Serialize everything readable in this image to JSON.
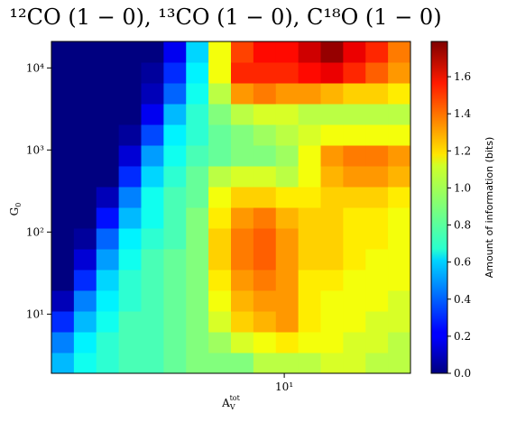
{
  "chart_data": {
    "type": "heatmap",
    "title": "¹²CO (1 − 0), ¹³CO (1 − 0), C¹⁸O (1 − 0)",
    "xlabel": {
      "base": "A",
      "sub": "V",
      "sup": "tot"
    },
    "ylabel": {
      "base": "G",
      "sub": "0"
    },
    "xscale": "log",
    "yscale": "log",
    "xlim": [
      1.6,
      27
    ],
    "ylim": [
      1.9,
      21000
    ],
    "xticks": [
      {
        "value": 10,
        "label": "10¹"
      }
    ],
    "yticks": [
      {
        "value": 10,
        "label": "10¹"
      },
      {
        "value": 100,
        "label": "10²"
      },
      {
        "value": 1000,
        "label": "10³"
      },
      {
        "value": 10000,
        "label": "10⁴"
      }
    ],
    "colormap": "jet",
    "clim": [
      0,
      1.79
    ],
    "colorbar_label": "Amount of information (bits)",
    "colorbar_ticks": [
      {
        "value": 0,
        "label": "0.0"
      },
      0.2,
      0.4,
      0.6,
      0.8,
      {
        "value": 1,
        "label": "1.0"
      },
      1.2,
      1.4,
      1.6
    ],
    "values": [
      [
        0.55,
        0.7,
        0.75,
        0.8,
        0.8,
        0.85,
        0.9,
        0.9,
        0.9,
        1.0,
        1.0,
        1.0,
        1.05,
        1.05,
        1.0,
        1.0
      ],
      [
        0.45,
        0.65,
        0.75,
        0.8,
        0.8,
        0.85,
        0.9,
        0.95,
        1.05,
        1.1,
        1.15,
        1.1,
        1.1,
        1.05,
        1.05,
        1.0
      ],
      [
        0.3,
        0.55,
        0.7,
        0.8,
        0.8,
        0.85,
        0.9,
        1.05,
        1.2,
        1.25,
        1.3,
        1.15,
        1.1,
        1.1,
        1.05,
        1.05
      ],
      [
        0.1,
        0.45,
        0.65,
        0.75,
        0.8,
        0.85,
        0.9,
        1.1,
        1.25,
        1.3,
        1.3,
        1.15,
        1.1,
        1.1,
        1.1,
        1.05
      ],
      [
        0.0,
        0.3,
        0.6,
        0.75,
        0.8,
        0.85,
        0.9,
        1.15,
        1.3,
        1.35,
        1.3,
        1.15,
        1.15,
        1.1,
        1.1,
        1.1
      ],
      [
        0.0,
        0.15,
        0.5,
        0.7,
        0.8,
        0.85,
        0.9,
        1.2,
        1.35,
        1.4,
        1.3,
        1.2,
        1.2,
        1.15,
        1.1,
        1.1
      ],
      [
        0.0,
        0.05,
        0.4,
        0.65,
        0.75,
        0.8,
        0.9,
        1.2,
        1.35,
        1.4,
        1.3,
        1.2,
        1.2,
        1.15,
        1.15,
        1.1
      ],
      [
        0.0,
        0.0,
        0.25,
        0.55,
        0.7,
        0.8,
        0.9,
        1.15,
        1.3,
        1.35,
        1.25,
        1.2,
        1.2,
        1.15,
        1.15,
        1.1
      ],
      [
        0.0,
        0.0,
        0.1,
        0.45,
        0.7,
        0.8,
        0.85,
        1.1,
        1.2,
        1.2,
        1.15,
        1.15,
        1.2,
        1.2,
        1.2,
        1.15
      ],
      [
        0.0,
        0.0,
        0.0,
        0.3,
        0.6,
        0.75,
        0.85,
        1.0,
        1.05,
        1.05,
        1.0,
        1.1,
        1.25,
        1.3,
        1.3,
        1.25
      ],
      [
        0.0,
        0.0,
        0.0,
        0.15,
        0.5,
        0.7,
        0.8,
        0.85,
        0.9,
        0.9,
        0.95,
        1.1,
        1.3,
        1.35,
        1.35,
        1.3
      ],
      [
        0.0,
        0.0,
        0.0,
        0.05,
        0.35,
        0.65,
        0.75,
        0.85,
        0.9,
        0.95,
        1.0,
        1.05,
        1.1,
        1.1,
        1.1,
        1.1
      ],
      [
        0.0,
        0.0,
        0.0,
        0.0,
        0.2,
        0.55,
        0.75,
        0.9,
        1.0,
        1.05,
        1.05,
        1.0,
        1.0,
        1.0,
        1.0,
        1.0
      ],
      [
        0.0,
        0.0,
        0.0,
        0.0,
        0.1,
        0.4,
        0.7,
        1.0,
        1.3,
        1.35,
        1.3,
        1.3,
        1.25,
        1.2,
        1.2,
        1.15
      ],
      [
        0.0,
        0.0,
        0.0,
        0.0,
        0.05,
        0.3,
        0.65,
        1.1,
        1.5,
        1.5,
        1.5,
        1.55,
        1.6,
        1.5,
        1.4,
        1.3
      ],
      [
        0.0,
        0.0,
        0.0,
        0.0,
        0.0,
        0.2,
        0.6,
        1.1,
        1.45,
        1.55,
        1.55,
        1.65,
        1.75,
        1.6,
        1.5,
        1.35
      ]
    ]
  }
}
